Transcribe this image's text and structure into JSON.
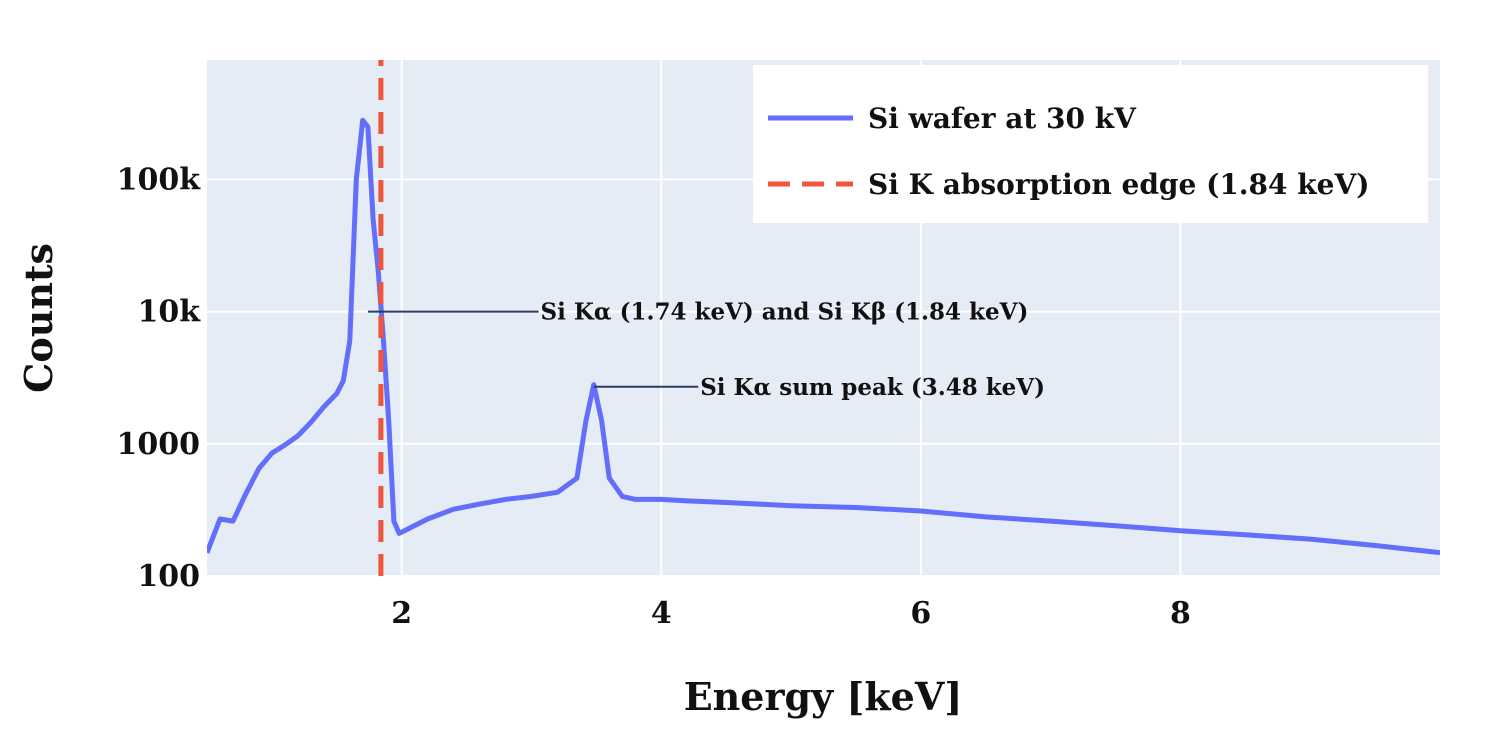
{
  "chart_data": {
    "type": "line",
    "xlabel": "Energy [keV]",
    "ylabel": "Counts",
    "xlim": [
      0.5,
      10
    ],
    "ylim": [
      100,
      800000
    ],
    "y_scale": "log",
    "grid": true,
    "legend_position": "top-right",
    "x_ticks": [
      {
        "value": 2,
        "label": "2"
      },
      {
        "value": 4,
        "label": "4"
      },
      {
        "value": 6,
        "label": "6"
      },
      {
        "value": 8,
        "label": "8"
      }
    ],
    "y_ticks": [
      {
        "value": 100,
        "label": "100"
      },
      {
        "value": 1000,
        "label": "1000"
      },
      {
        "value": 10000,
        "label": "10k"
      },
      {
        "value": 100000,
        "label": "100k"
      }
    ],
    "series": [
      {
        "name": "Si wafer at 30 kV",
        "color": "#636efa",
        "x": [
          0.5,
          0.6,
          0.7,
          0.8,
          0.9,
          1.0,
          1.1,
          1.2,
          1.3,
          1.4,
          1.5,
          1.55,
          1.6,
          1.65,
          1.7,
          1.74,
          1.78,
          1.82,
          1.86,
          1.9,
          1.94,
          1.98,
          2.0,
          2.2,
          2.4,
          2.6,
          2.8,
          3.0,
          3.2,
          3.35,
          3.42,
          3.48,
          3.54,
          3.6,
          3.7,
          3.8,
          4.0,
          4.2,
          4.5,
          5.0,
          5.5,
          6.0,
          6.5,
          7.0,
          7.5,
          8.0,
          8.5,
          9.0,
          9.5,
          10.0
        ],
        "y": [
          150,
          270,
          260,
          420,
          650,
          850,
          980,
          1150,
          1450,
          1900,
          2400,
          3000,
          6000,
          100000,
          280000,
          250000,
          50000,
          20000,
          6000,
          1500,
          260,
          210,
          215,
          270,
          320,
          350,
          380,
          400,
          430,
          550,
          1500,
          2800,
          1500,
          550,
          400,
          380,
          380,
          370,
          360,
          340,
          330,
          310,
          280,
          260,
          240,
          220,
          205,
          190,
          170,
          150
        ]
      },
      {
        "name": "Si K absorption edge (1.84 keV)",
        "color": "#ef553b",
        "style": "dashed",
        "x": [
          1.84,
          1.84
        ],
        "y": [
          100,
          800000
        ]
      }
    ],
    "annotations": [
      {
        "text": "Si Kα (1.74 keV) and Si Kβ (1.84 keV)",
        "x": 1.74,
        "y": 10000,
        "text_x": 3.07
      },
      {
        "text": "Si Kα sum peak (3.48 keV)",
        "x": 3.48,
        "y": 2700,
        "text_x": 4.3
      }
    ]
  }
}
